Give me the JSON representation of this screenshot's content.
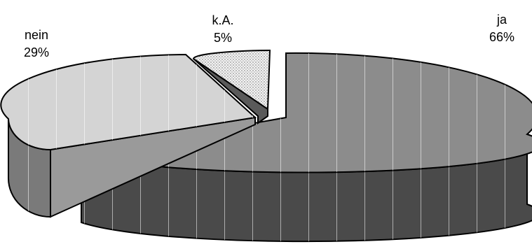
{
  "chart_data": {
    "type": "pie",
    "style": "3d-exploded",
    "categories": [
      "ja",
      "nein",
      "k.A."
    ],
    "values": [
      66,
      29,
      5
    ],
    "value_labels": [
      "66%",
      "29%",
      "5%"
    ],
    "colors": [
      "#8c8c8c",
      "#d4d4d4",
      "#f0f0f0"
    ],
    "legend": "none"
  }
}
